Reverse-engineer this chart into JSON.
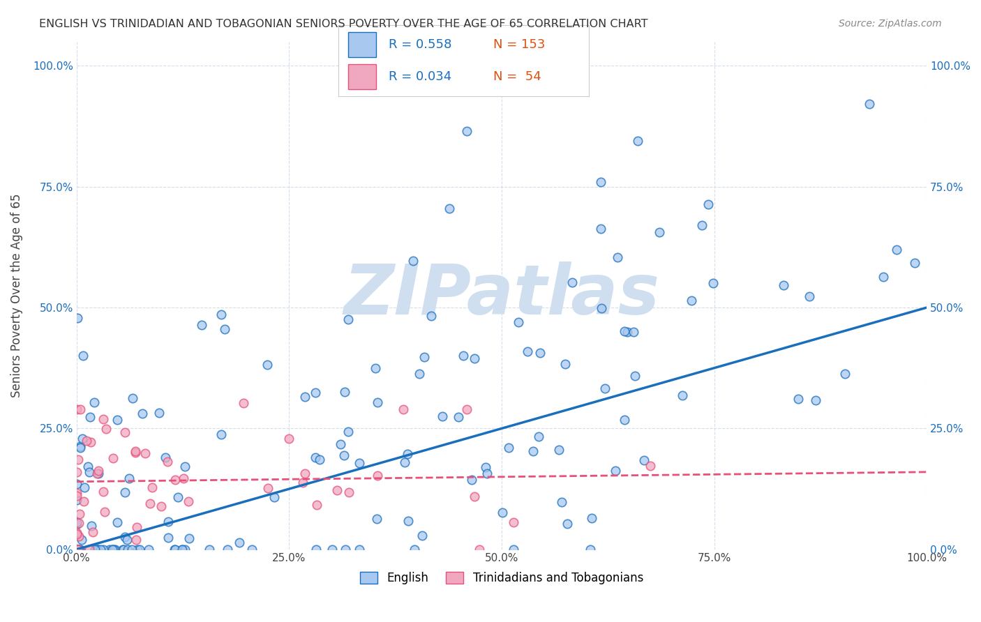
{
  "title": "ENGLISH VS TRINIDADIAN AND TOBAGONIAN SENIORS POVERTY OVER THE AGE OF 65 CORRELATION CHART",
  "source": "Source: ZipAtlas.com",
  "ylabel": "Seniors Poverty Over the Age of 65",
  "ytick_labels": [
    "0.0%",
    "25.0%",
    "50.0%",
    "75.0%",
    "100.0%"
  ],
  "xtick_labels": [
    "0.0%",
    "25.0%",
    "50.0%",
    "75.0%",
    "100.0%"
  ],
  "legend_english_R": "0.558",
  "legend_english_N": "153",
  "legend_tnt_R": "0.034",
  "legend_tnt_N": "54",
  "english_color": "#a8c8f0",
  "tnt_color": "#f0a8c0",
  "english_line_color": "#1a6fbd",
  "tnt_line_color": "#e8507a",
  "watermark": "ZIPatlas",
  "watermark_color": "#d0dff0",
  "background_color": "#ffffff",
  "grid_color": "#d0d8e8",
  "title_color": "#333333",
  "legend_R_color": "#1a6fbd",
  "legend_N_color": "#e05010",
  "english_seed": 42,
  "tnt_seed": 99,
  "english_n": 153,
  "tnt_n": 54,
  "english_slope": 0.5,
  "english_intercept": 0.0,
  "tnt_slope": 0.02,
  "tnt_intercept": 0.14
}
